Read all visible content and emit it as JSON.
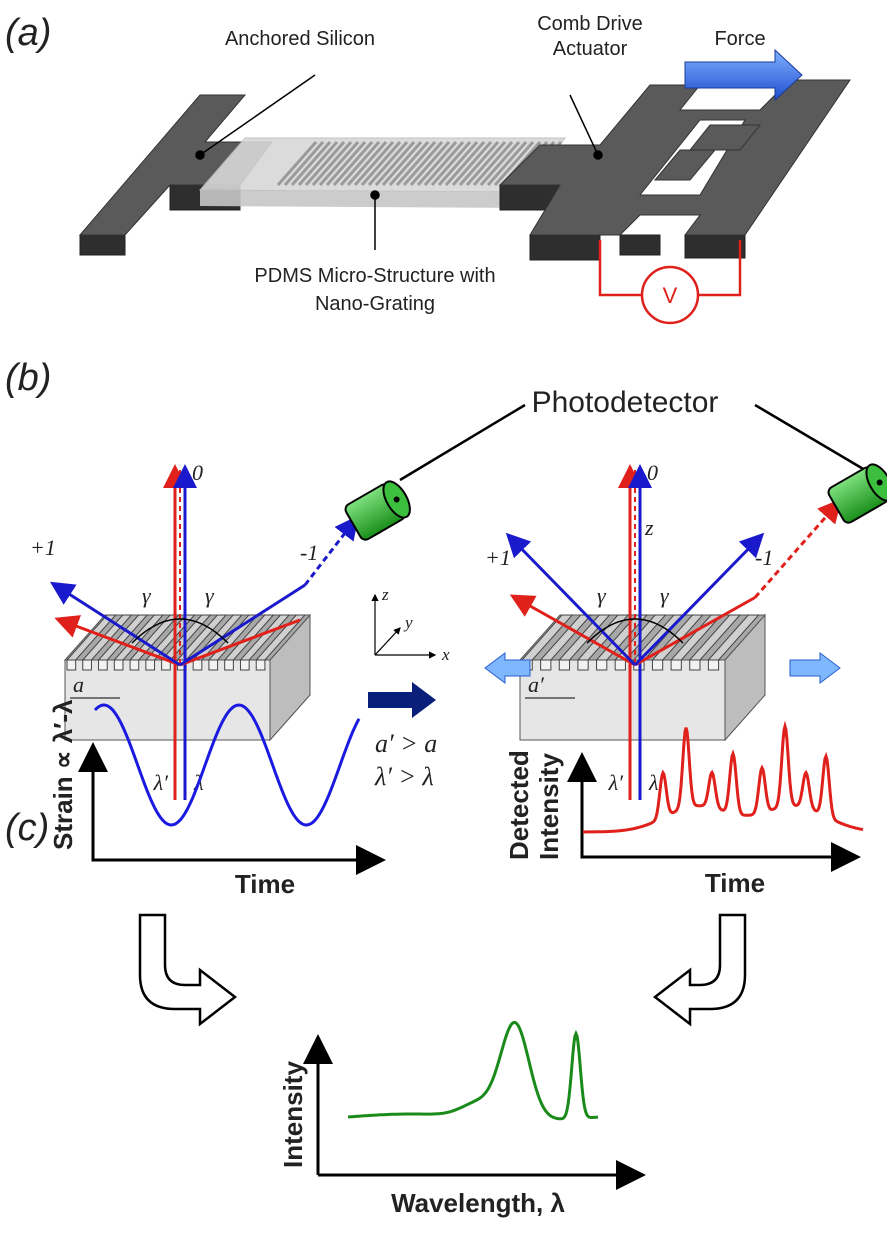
{
  "panel_a": {
    "label": "(a)",
    "anchored": "Anchored Silicon",
    "comb_drive": [
      "Comb Drive",
      "Actuator"
    ],
    "force": "Force",
    "voltage": "V",
    "pdms": [
      "PDMS Micro-Structure with",
      "Nano-Grating"
    ]
  },
  "panel_b": {
    "label": "(b)",
    "photodetector": "Photodetector",
    "left": {
      "orders": [
        "0",
        "+1",
        "-1"
      ],
      "gamma": "γ",
      "period": "a",
      "wavelengths": [
        "λ′",
        "λ"
      ]
    },
    "axes": [
      "z",
      "y",
      "x"
    ],
    "relations": [
      "a′ > a",
      "λ′ > λ"
    ],
    "right": {
      "orders": [
        "0",
        "+1",
        "-1"
      ],
      "z": "z",
      "gamma": "γ",
      "period": "a′",
      "wavelengths": [
        "λ′",
        "λ"
      ]
    }
  },
  "panel_c": {
    "label": "(c)",
    "strain_axis": "Strain ∝ λ′-λ",
    "strain_time": "Time",
    "detected_axis": [
      "Detected",
      "Intensity"
    ],
    "detected_time": "Time",
    "intensity_axis": "Intensity",
    "wavelength_axis": "Wavelength, λ"
  }
}
